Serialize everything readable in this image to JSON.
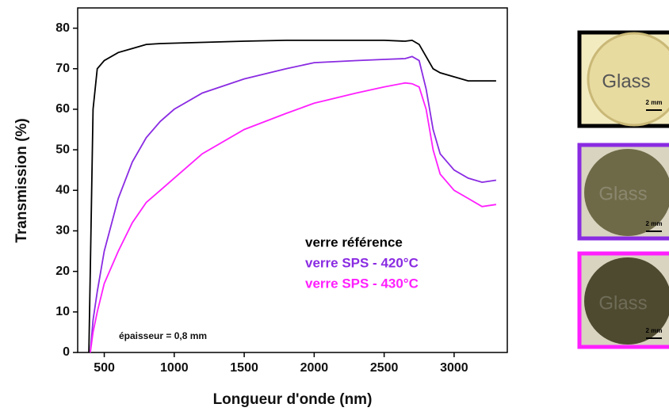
{
  "chart_data": {
    "type": "line",
    "x_label": "Longueur d'onde (nm)",
    "y_label": "Transmission (%)",
    "annotation": "épaisseur = 0,8 mm",
    "x": [
      390,
      400,
      420,
      450,
      500,
      600,
      700,
      800,
      900,
      1000,
      1200,
      1500,
      1800,
      2000,
      2300,
      2500,
      2650,
      2700,
      2750,
      2800,
      2850,
      2900,
      3000,
      3100,
      3200,
      3300
    ],
    "series": [
      {
        "name": "verre référence",
        "color": "#000000",
        "values": [
          0,
          20,
          60,
          70,
          72,
          74,
          75,
          76,
          76.2,
          76.3,
          76.5,
          76.8,
          77,
          77,
          77,
          77,
          76.8,
          77,
          76,
          73,
          70,
          69,
          68,
          67,
          67,
          67
        ]
      },
      {
        "name": "verre SPS - 420°C",
        "color": "#8a2be2",
        "values": [
          null,
          0,
          8,
          15,
          25,
          38,
          47,
          53,
          57,
          60,
          64,
          67.5,
          70,
          71.5,
          72,
          72.3,
          72.5,
          73,
          72,
          65,
          55,
          49,
          45,
          43,
          42,
          42.5
        ]
      },
      {
        "name": "verre SPS - 430°C",
        "color": "#ff1fff",
        "values": [
          null,
          0,
          5,
          10,
          17,
          25,
          32,
          37,
          40,
          43,
          49,
          55,
          59,
          61.5,
          64,
          65.5,
          66.5,
          66.3,
          65.5,
          60,
          50,
          44,
          40,
          38,
          36,
          36.5
        ]
      }
    ],
    "xlim": [
      310,
      3380
    ],
    "ylim": [
      0,
      85
    ],
    "xticks": [
      500,
      1000,
      1500,
      2000,
      2500,
      3000
    ],
    "yticks": [
      0,
      10,
      20,
      30,
      40,
      50,
      60,
      70,
      80
    ],
    "photos": [
      {
        "label": "Glass",
        "scale": "2 mm"
      },
      {
        "label": "Glass",
        "scale": "2 mm"
      },
      {
        "label": "Glass",
        "scale": "2 mm"
      }
    ]
  }
}
